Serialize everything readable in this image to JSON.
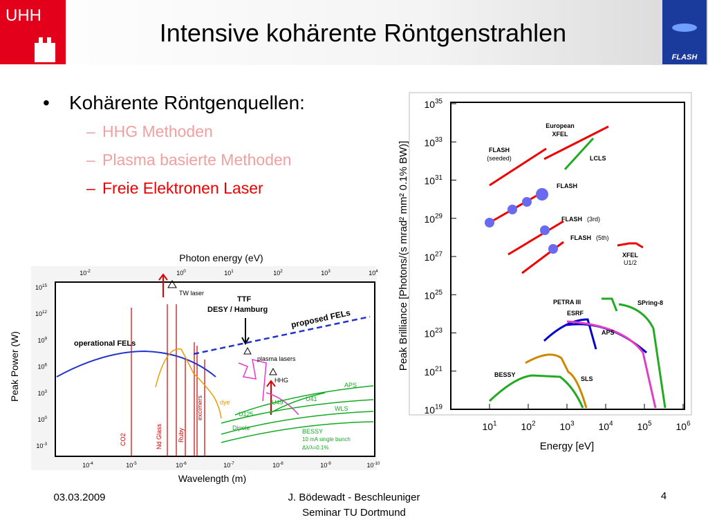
{
  "header": {
    "logo_left": "UHH",
    "title": "Intensive kohärente Röntgenstrahlen",
    "logo_right": "FLASH"
  },
  "bullets": {
    "main": "Kohärente Röntgenquellen:",
    "items": [
      {
        "dash": "–",
        "text": "HHG Methoden"
      },
      {
        "dash": "–",
        "text": "Plasma basierte Methoden"
      },
      {
        "dash": "–",
        "text": "Freie Elektronen Laser"
      }
    ]
  },
  "left_figure": {
    "top_axis_label": "Photon energy (eV)",
    "bottom_axis_label": "Wavelength (m)",
    "y_axis_label": "Peak Power (W)",
    "top_ticks": [
      {
        "base": "10",
        "exp": "-2"
      },
      {
        "base": "10",
        "exp": "0"
      },
      {
        "base": "10",
        "exp": "1"
      },
      {
        "base": "10",
        "exp": "2"
      },
      {
        "base": "10",
        "exp": "3"
      },
      {
        "base": "10",
        "exp": "4"
      }
    ],
    "y_ticks": [
      {
        "base": "10",
        "exp": "15"
      },
      {
        "base": "10",
        "exp": "12"
      },
      {
        "base": "10",
        "exp": "9"
      },
      {
        "base": "10",
        "exp": "6"
      },
      {
        "base": "10",
        "exp": "3"
      },
      {
        "base": "10",
        "exp": "0"
      },
      {
        "base": "10",
        "exp": "-3"
      }
    ],
    "bottom_ticks": [
      {
        "base": "10",
        "exp": "-4"
      },
      {
        "base": "10",
        "exp": "-5"
      },
      {
        "base": "10",
        "exp": "-6"
      },
      {
        "base": "10",
        "exp": "-7"
      },
      {
        "base": "10",
        "exp": "-8"
      },
      {
        "base": "10",
        "exp": "-9"
      },
      {
        "base": "10",
        "exp": "-10"
      }
    ],
    "labels": {
      "tw_laser": "TW laser",
      "ttf": "TTF",
      "desy": "DESY / Hamburg",
      "proposed": "proposed FELs",
      "operational": "operational FELs",
      "plasma": "plasma lasers",
      "hhg": "HHG",
      "aps": "APS",
      "u41": "U41",
      "u49": "U49",
      "wls": "WLS",
      "u125": "U125",
      "dipole": "Dipole",
      "bessy": "BESSY",
      "bunch": "10 mA  single bunch",
      "dl": "Δλ/λ=0.1%",
      "dye": "dye",
      "excimers": "excimers",
      "ruby": "Ruby",
      "ndglass": "Nd Glass",
      "co2": "CO2"
    }
  },
  "right_figure": {
    "y_axis_label": "Peak Brilliance  [Photons/(s mrad² mm² 0.1% BW)]",
    "x_axis_label": "Energy  [eV]",
    "y_ticks": [
      {
        "base": "10",
        "exp": "35"
      },
      {
        "base": "10",
        "exp": "33"
      },
      {
        "base": "10",
        "exp": "31"
      },
      {
        "base": "10",
        "exp": "29"
      },
      {
        "base": "10",
        "exp": "27"
      },
      {
        "base": "10",
        "exp": "25"
      },
      {
        "base": "10",
        "exp": "23"
      },
      {
        "base": "10",
        "exp": "21"
      },
      {
        "base": "10",
        "exp": "19"
      }
    ],
    "x_ticks": [
      {
        "base": "10",
        "exp": "1"
      },
      {
        "base": "10",
        "exp": "2"
      },
      {
        "base": "10",
        "exp": "3"
      },
      {
        "base": "10",
        "exp": "4"
      },
      {
        "base": "10",
        "exp": "5"
      },
      {
        "base": "10",
        "exp": "6"
      }
    ],
    "labels": {
      "euro1": "European",
      "euro2": "XFEL",
      "flash_s": "FLASH",
      "seeded": "(seeded)",
      "lcls": "LCLS",
      "flash": "FLASH",
      "flash3": "FLASH",
      "flash3n": "(3rd)",
      "flash5": "FLASH",
      "flash5n": "(5th)",
      "xfel": "XFEL",
      "u12": "U1/2",
      "petra": "PETRA III",
      "esrf": "ESRF",
      "spring": "SPring-8",
      "aps": "APS",
      "bessy": "BESSY",
      "sls": "SLS"
    }
  },
  "footer": {
    "date": "03.03.2009",
    "author_line1": "J. Bödewadt - Beschleuniger",
    "author_line2": "Seminar TU Dortmund",
    "page": "4"
  }
}
